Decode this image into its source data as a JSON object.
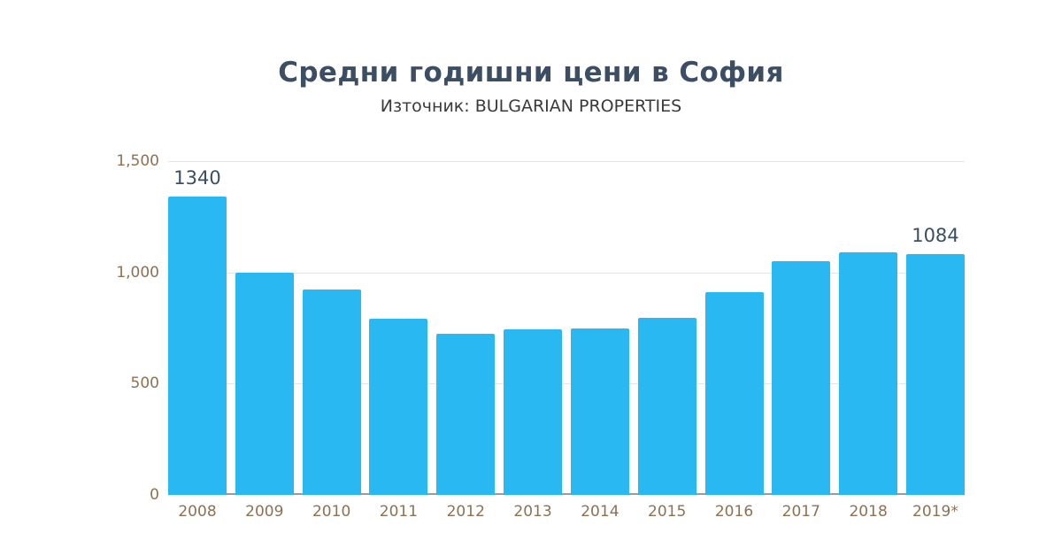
{
  "chart_data": {
    "type": "bar",
    "title": "Средни годишни цени в София",
    "subtitle": "Източник: BULGARIAN PROPERTIES",
    "categories": [
      "2008",
      "2009",
      "2010",
      "2011",
      "2012",
      "2013",
      "2014",
      "2015",
      "2016",
      "2017",
      "2018",
      "2019*"
    ],
    "values": [
      1340,
      1000,
      925,
      790,
      723,
      743,
      747,
      795,
      910,
      1050,
      1090,
      1084
    ],
    "value_labels": [
      {
        "index": 0,
        "text": "1340"
      },
      {
        "index": 11,
        "text": "1084"
      }
    ],
    "xlabel": "",
    "ylabel": "",
    "ylim": [
      0,
      1500
    ],
    "yticks": [
      0,
      500,
      1000,
      1500
    ],
    "ytick_labels": [
      "0",
      "500",
      "1,000",
      "1,500"
    ],
    "grid": true,
    "legend": false,
    "colors": {
      "bar": "#29B8F2",
      "title": "#3B4E63",
      "subtitle": "#3A3A3A",
      "axis_labels": "#8F7050",
      "value_labels": "#3B4E63",
      "gridline": "#E4E4E4",
      "baseline": "#9B9B9B",
      "background": "#FFFFFF"
    }
  }
}
